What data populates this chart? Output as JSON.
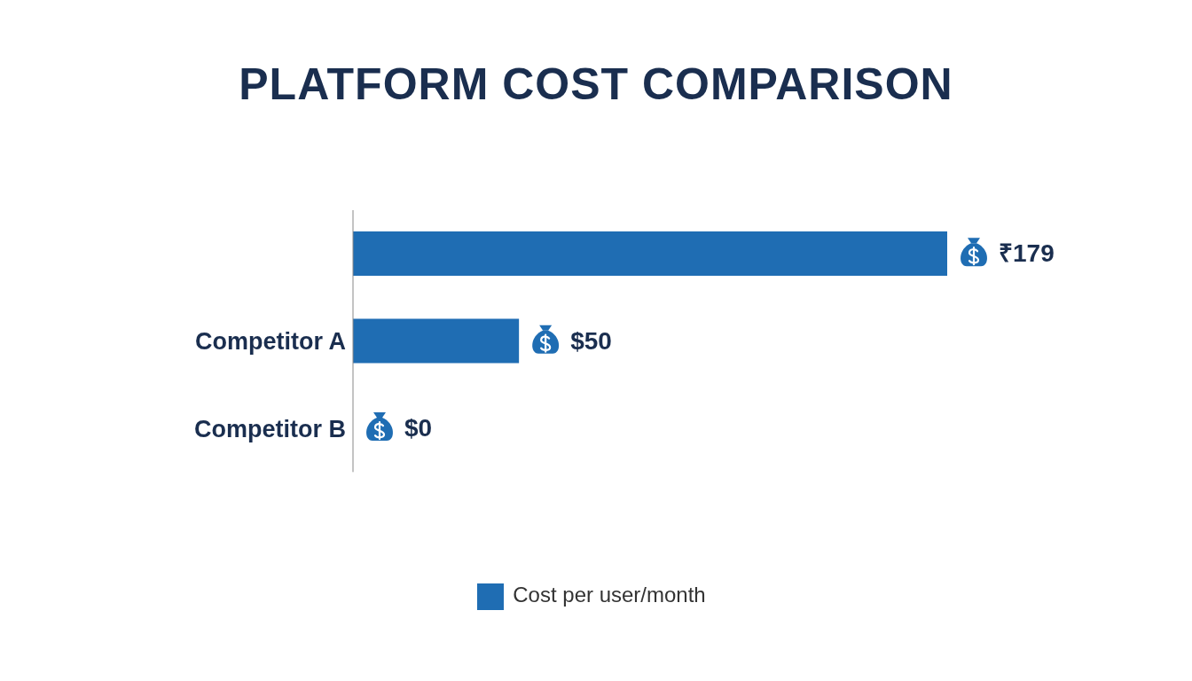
{
  "chart_data": {
    "type": "bar",
    "title": "PLATFORM COST COMPARISON",
    "orientation": "horizontal",
    "categories": [
      null,
      "Competitor A",
      "Competitor B"
    ],
    "legend": "bottom",
    "series": [
      {
        "name": "Cost per user/month",
        "color": "#1f6db3",
        "values": [
          179,
          50,
          0
        ],
        "value_labels": [
          "₹179",
          "$50",
          "$0"
        ]
      }
    ]
  }
}
